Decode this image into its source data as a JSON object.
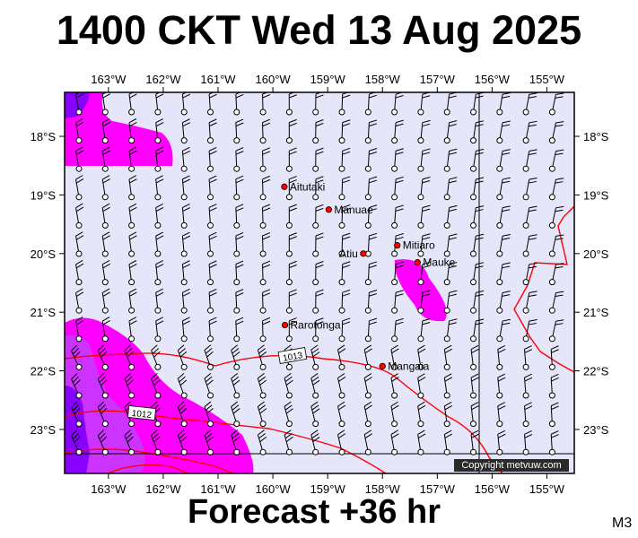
{
  "header": {
    "title": "1400 CKT Wed 13 Aug 2025"
  },
  "footer": {
    "forecast": "Forecast +36 hr",
    "model_code": "M3",
    "copyright": "Copyright metvuw.com"
  },
  "map": {
    "longitude_labels": [
      "163°W",
      "162°W",
      "161°W",
      "160°W",
      "159°W",
      "158°W",
      "157°W",
      "156°W",
      "155°W"
    ],
    "latitude_labels": [
      "18°S",
      "19°S",
      "20°S",
      "21°S",
      "22°S",
      "23°S"
    ],
    "colors": {
      "background": "#e6e6fa",
      "frame": "#000000",
      "isobar": "#ff0000",
      "rain_light": "#ff00ff",
      "rain_medium": "#cc33ff",
      "rain_heavy": "#8800ff",
      "island": "#ff0000"
    },
    "places": [
      {
        "name": "Aitutaki",
        "lon": -159.79,
        "lat": -18.86
      },
      {
        "name": "Manuae",
        "lon": -158.98,
        "lat": -19.25
      },
      {
        "name": "Mitiaro",
        "lon": -157.73,
        "lat": -19.86
      },
      {
        "name": "Atiu",
        "lon": -158.35,
        "lat": -20.0
      },
      {
        "name": "Mauke",
        "lon": -157.36,
        "lat": -20.15
      },
      {
        "name": "Rarotonga",
        "lon": -159.78,
        "lat": -21.22
      },
      {
        "name": "Mangaia",
        "lon": -158.0,
        "lat": -21.92
      }
    ],
    "isobars": [
      {
        "label": "1013"
      },
      {
        "label": "1012"
      }
    ]
  }
}
